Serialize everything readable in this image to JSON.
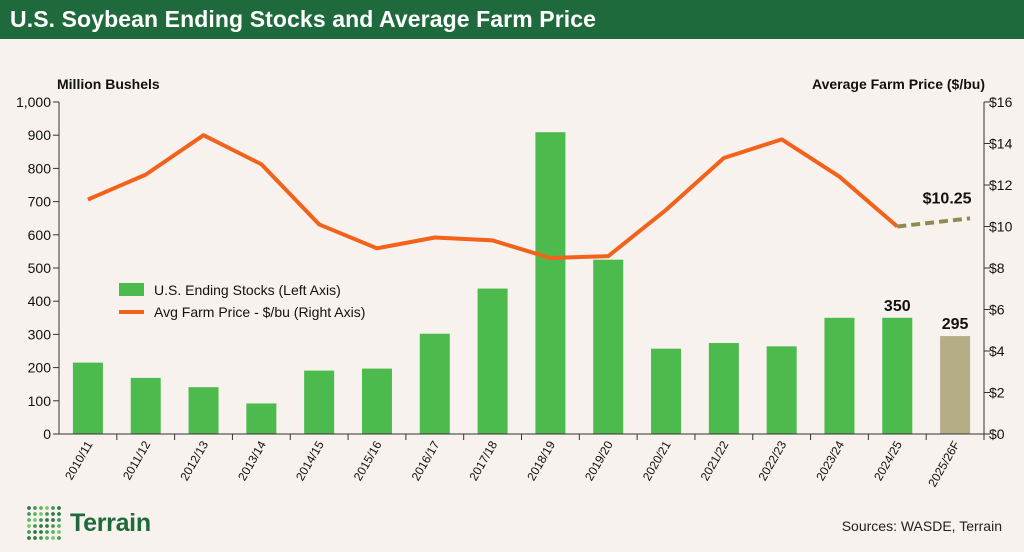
{
  "header": {
    "title": "U.S. Soybean Ending Stocks and Average Farm Price"
  },
  "footer": {
    "logo_text": "Terrain",
    "sources": "Sources: WASDE, Terrain"
  },
  "colors": {
    "bar": "#4cba4c",
    "bar_forecast": "#b5ad86",
    "line": "#f2621a",
    "line_forecast": "#8e8a52",
    "header_bg": "#1f6a3c"
  },
  "icons": {
    "logo": "dot-grid-logo-icon"
  },
  "chart_data": {
    "type": "bar",
    "categories": [
      "2010/11",
      "2011/12",
      "2012/13",
      "2013/14",
      "2014/15",
      "2015/16",
      "2016/17",
      "2017/18",
      "2018/19",
      "2019/20",
      "2020/21",
      "2021/22",
      "2022/23",
      "2023/24",
      "2024/25",
      "2025/26F"
    ],
    "series": [
      {
        "name": "U.S. Ending Stocks (Left Axis)",
        "type": "bar",
        "axis": "left",
        "values": [
          215,
          169,
          141,
          92,
          191,
          197,
          302,
          438,
          909,
          525,
          257,
          274,
          264,
          350,
          350,
          295
        ]
      },
      {
        "name": "Avg Farm Price - $/bu (Right Axis)",
        "type": "line",
        "axis": "right",
        "values": [
          11.3,
          12.5,
          14.4,
          13.0,
          10.1,
          8.95,
          9.47,
          9.33,
          8.48,
          8.57,
          10.8,
          13.3,
          14.2,
          12.4,
          10.0,
          10.25
        ]
      }
    ],
    "forecast_category": "2025/26F",
    "data_labels": [
      {
        "category": "2024/25",
        "text": "350"
      },
      {
        "category": "2025/26F",
        "text": "295"
      },
      {
        "category": "2025/26F",
        "text": "$10.25"
      }
    ],
    "ylabel_left": "Million Bushels",
    "ylabel_right": "Average Farm Price  ($/bu)",
    "ylim_left": [
      0,
      1000
    ],
    "ylim_right": [
      0,
      16
    ],
    "yticks_left": [
      "0",
      "100",
      "200",
      "300",
      "400",
      "500",
      "600",
      "700",
      "800",
      "900",
      "1,000"
    ],
    "yticks_right": [
      "$0",
      "$2",
      "$4",
      "$6",
      "$8",
      "$10",
      "$12",
      "$14",
      "$16"
    ],
    "grid": false,
    "legend_position": "left"
  }
}
